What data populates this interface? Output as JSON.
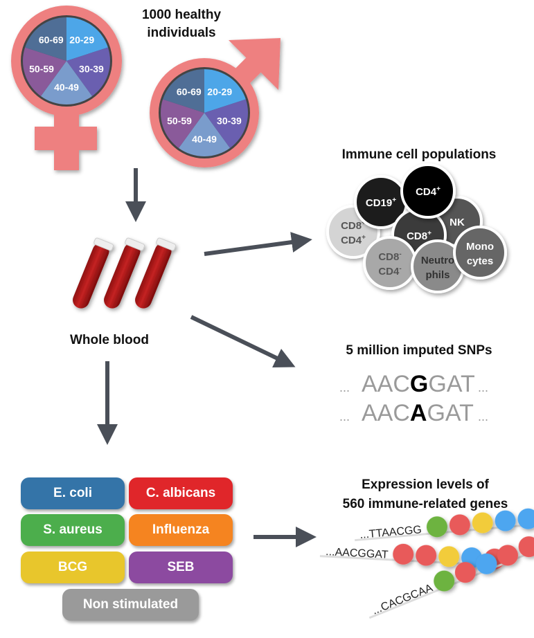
{
  "cohort": {
    "title_line1": "1000 healthy",
    "title_line2": "individuals",
    "age_groups": [
      "20-29",
      "30-39",
      "40-49",
      "50-59",
      "60-69"
    ],
    "age_colors": [
      "#4da6e8",
      "#6a5fb0",
      "#7a9ccc",
      "#8a5a9a",
      "#4f6e96"
    ],
    "symbol_color": "#ee8080"
  },
  "blood": {
    "label": "Whole blood"
  },
  "immune": {
    "title": "Immune cell populations",
    "cells": [
      {
        "line1": "CD19",
        "sup1": "+",
        "line2": "",
        "sup2": ""
      },
      {
        "line1": "CD4",
        "sup1": "+",
        "line2": "",
        "sup2": ""
      },
      {
        "line1": "NK",
        "sup1": "",
        "line2": "",
        "sup2": ""
      },
      {
        "line1": "CD8",
        "sup1": "+",
        "line2": "CD4",
        "sup2": "+"
      },
      {
        "line1": "CD8",
        "sup1": "+",
        "line2": "",
        "sup2": ""
      },
      {
        "line1": "CD8",
        "sup1": "-",
        "line2": "CD4",
        "sup2": "-"
      },
      {
        "line1": "Neutro",
        "sup1": "",
        "line2": "phils",
        "sup2": ""
      },
      {
        "line1": "Mono",
        "sup1": "",
        "line2": "cytes",
        "sup2": ""
      }
    ]
  },
  "snps": {
    "title": "5 million imputed SNPs",
    "seq1": {
      "pre": "AAC",
      "alt": "G",
      "post": "GAT"
    },
    "seq2": {
      "pre": "AAC",
      "alt": "A",
      "post": "GAT"
    },
    "ellipsis": "..."
  },
  "stimuli": [
    {
      "label": "E. coli",
      "color": "#3474a8"
    },
    {
      "label": "C. albicans",
      "color": "#e0262a"
    },
    {
      "label": "S. aureus",
      "color": "#4cae4c"
    },
    {
      "label": "Influenza",
      "color": "#f58420"
    },
    {
      "label": "BCG",
      "color": "#e8c62c"
    },
    {
      "label": "SEB",
      "color": "#8c4aa0"
    },
    {
      "label": "Non stimulated",
      "color": "#9a9a9a"
    }
  ],
  "expression": {
    "title_line1": "Expression levels of",
    "title_line2": "560 immune-related genes",
    "strands": [
      {
        "seq": "...TTAACGG",
        "beads": [
          "#6db33f",
          "#e85a5a",
          "#f2cc3a",
          "#4da6f0",
          "#4da6f0"
        ]
      },
      {
        "seq": "...AACGGAT",
        "beads": [
          "#e85a5a",
          "#e85a5a",
          "#f2cc3a",
          "#4da6f0",
          "#e85a5a"
        ]
      },
      {
        "seq": "...CACGCAA",
        "beads": [
          "#6db33f",
          "#e85a5a",
          "#4da6f0",
          "#e85a5a",
          "#e85a5a"
        ]
      }
    ]
  },
  "arrow_color": "#4a4f58"
}
